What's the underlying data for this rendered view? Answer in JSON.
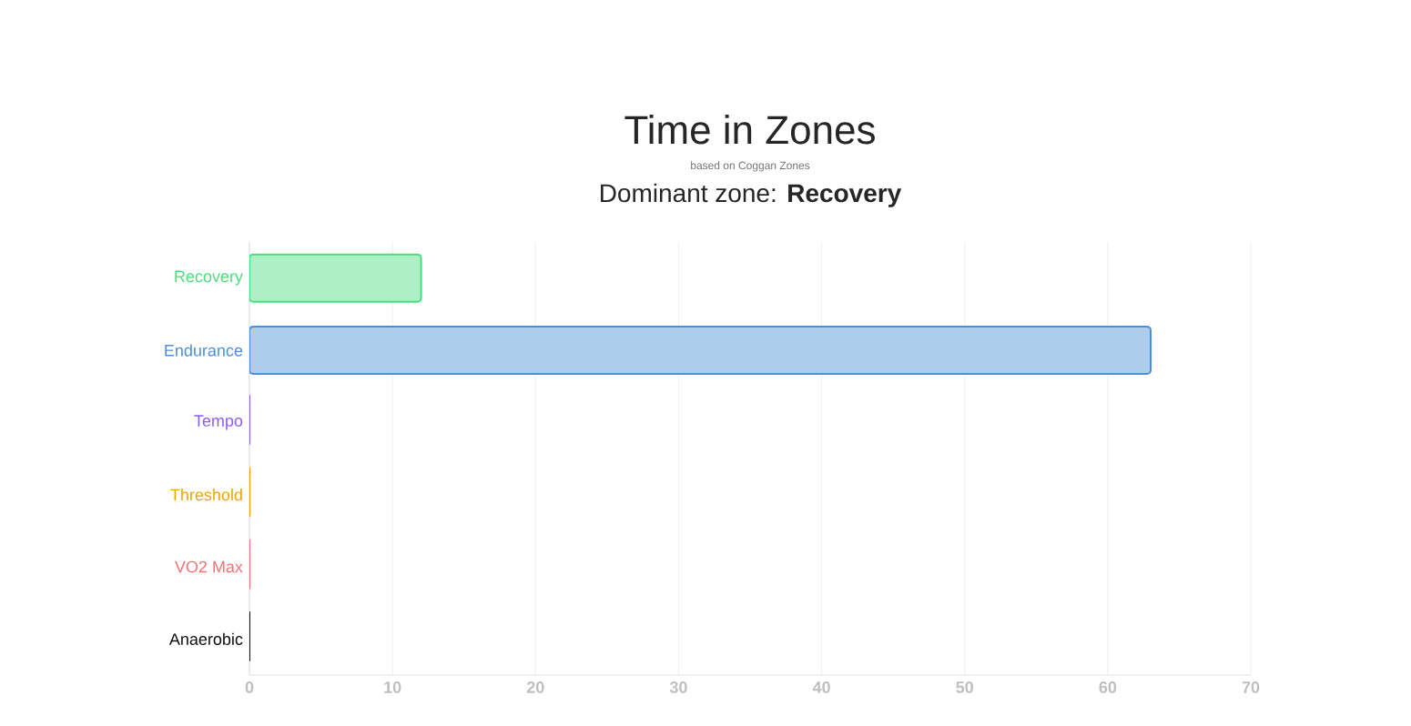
{
  "chart_data": {
    "type": "bar",
    "orientation": "horizontal",
    "title": "Time in Zones",
    "subtitle": "based on Coggan Zones",
    "annotations": [
      "Dominant zone: **Recovery**"
    ],
    "categories": [
      "Recovery",
      "Endurance",
      "Tempo",
      "Threshold",
      "VO2 Max",
      "Anaerobic"
    ],
    "values": [
      12,
      63,
      0,
      0,
      0,
      0
    ],
    "colors": [
      "#4ade80",
      "#4a90d9",
      "#8b5cf6",
      "#eaa400",
      "#f87171",
      "#111111"
    ],
    "xlim": [
      0,
      70
    ],
    "xticks": [
      0,
      10,
      20,
      30,
      40,
      50,
      60,
      70
    ],
    "grid": "x"
  }
}
